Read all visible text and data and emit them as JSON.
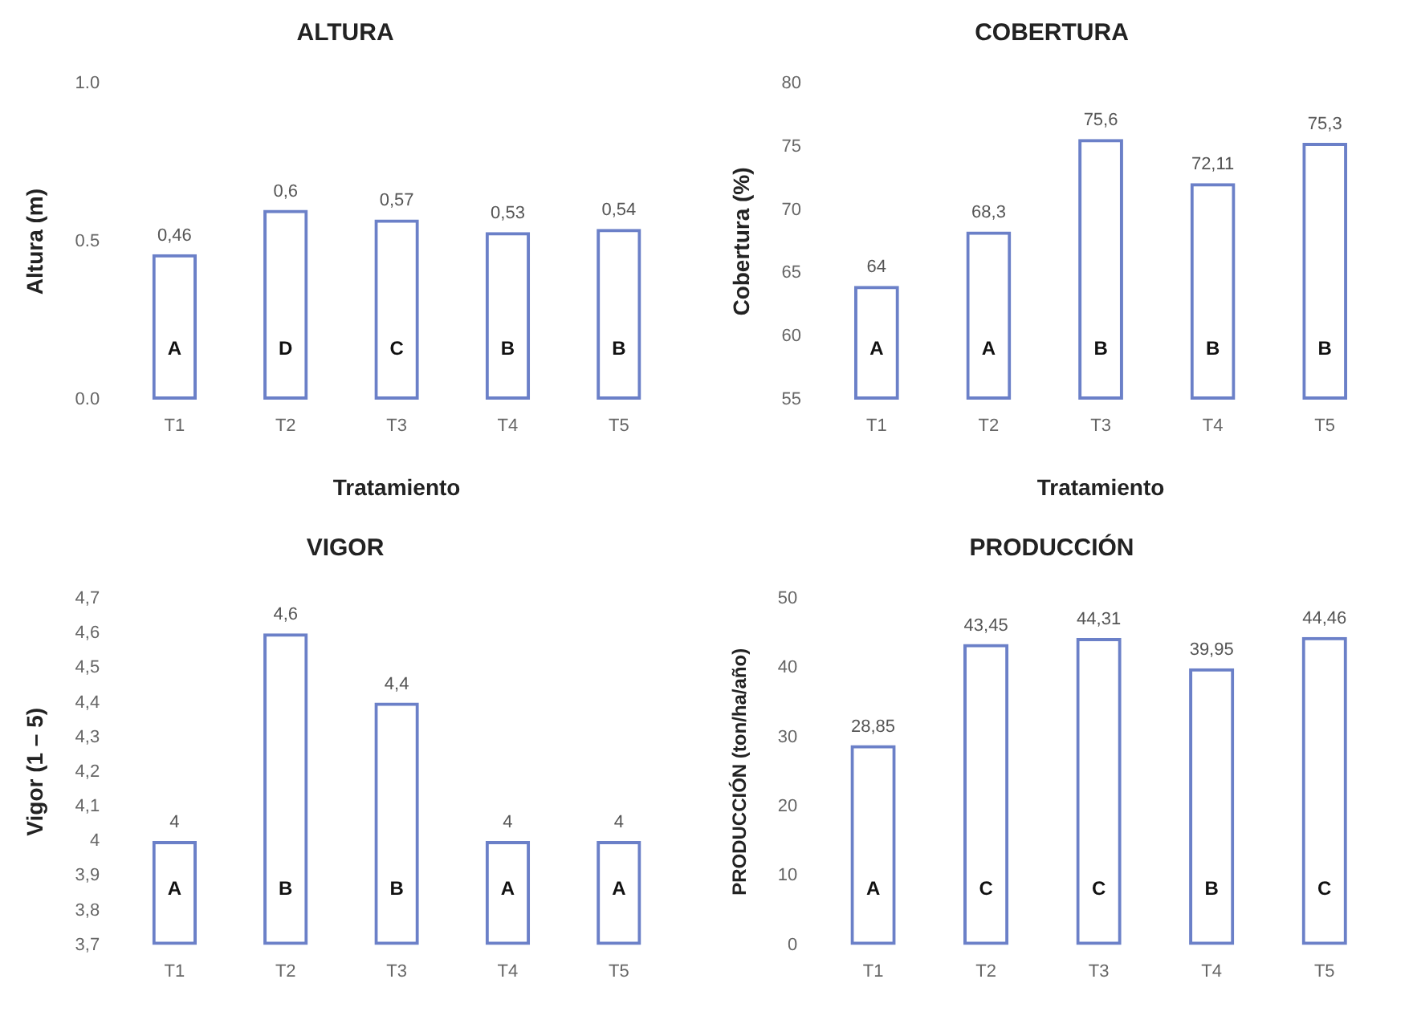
{
  "chart_data": [
    {
      "type": "bar",
      "title": "ALTURA",
      "xlabel": "Tratamiento",
      "ylabel": "Altura (m)",
      "categories": [
        "T1",
        "T2",
        "T3",
        "T4",
        "T5"
      ],
      "series": [
        {
          "color": "#6b80c8",
          "values": [
            0.46,
            0.6,
            0.57,
            0.53,
            0.54
          ]
        }
      ],
      "value_labels": [
        "0,46",
        "0,6",
        "0,57",
        "0,53",
        "0,54"
      ],
      "ylim": [
        0,
        1
      ],
      "yticks": [
        {
          "value": 0,
          "label": "0.0"
        },
        {
          "value": 0.5,
          "label": "0.5"
        },
        {
          "value": 1,
          "label": "1.0"
        }
      ],
      "grid": false,
      "legend": false,
      "annotations": [
        "A",
        "D",
        "C",
        "B",
        "B"
      ]
    },
    {
      "type": "bar",
      "title": "COBERTURA",
      "xlabel": "Tratamiento",
      "ylabel": "Cobertura (%)",
      "categories": [
        "T1",
        "T2",
        "T3",
        "T4",
        "T5"
      ],
      "series": [
        {
          "color": "#6b80c8",
          "values": [
            64,
            68.3,
            75.6,
            72.11,
            75.3
          ]
        }
      ],
      "value_labels": [
        "64",
        "68,3",
        "75,6",
        "72,11",
        "75,3"
      ],
      "ylim": [
        55,
        80
      ],
      "yticks": [
        55,
        60,
        65,
        70,
        75,
        80
      ],
      "grid": false,
      "legend": false,
      "annotations": [
        "A",
        "A",
        "B",
        "B",
        "B"
      ]
    },
    {
      "type": "bar",
      "title": "VIGOR",
      "ylabel": "Vigor (1 – 5)",
      "categories": [
        "T1",
        "T2",
        "T3",
        "T4",
        "T5"
      ],
      "series": [
        {
          "color": "#6b80c8",
          "values": [
            4,
            4.6,
            4.4,
            4,
            4
          ]
        }
      ],
      "value_labels": [
        "4",
        "4,6",
        "4,4",
        "4",
        "4"
      ],
      "ylim": [
        3.7,
        4.7
      ],
      "yticks": [
        {
          "value": 3.7,
          "label": "3,7"
        },
        {
          "value": 3.8,
          "label": "3,8"
        },
        {
          "value": 3.9,
          "label": "3,9"
        },
        {
          "value": 4,
          "label": "4"
        },
        {
          "value": 4.1,
          "label": "4,1"
        },
        {
          "value": 4.2,
          "label": "4,2"
        },
        {
          "value": 4.3,
          "label": "4,3"
        },
        {
          "value": 4.4,
          "label": "4,4"
        },
        {
          "value": 4.5,
          "label": "4,5"
        },
        {
          "value": 4.6,
          "label": "4,6"
        },
        {
          "value": 4.7,
          "label": "4,7"
        }
      ],
      "grid": false,
      "legend": false,
      "annotations": [
        "A",
        "B",
        "B",
        "A",
        "A"
      ]
    },
    {
      "type": "bar",
      "title": "PRODUCCIÓN",
      "ylabel": "PRODUCCIÓN (ton/ha/año)",
      "categories": [
        "T1",
        "T2",
        "T3",
        "T4",
        "T5"
      ],
      "series": [
        {
          "color": "#6b80c8",
          "values": [
            28.85,
            43.45,
            44.31,
            39.95,
            44.46
          ]
        }
      ],
      "value_labels": [
        "28,85",
        "43,45",
        "44,31",
        "39,95",
        "44,46"
      ],
      "ylim": [
        0,
        50
      ],
      "yticks": [
        0,
        10,
        20,
        30,
        40,
        50
      ],
      "grid": false,
      "legend": false,
      "annotations": [
        "A",
        "C",
        "C",
        "B",
        "C"
      ]
    }
  ]
}
